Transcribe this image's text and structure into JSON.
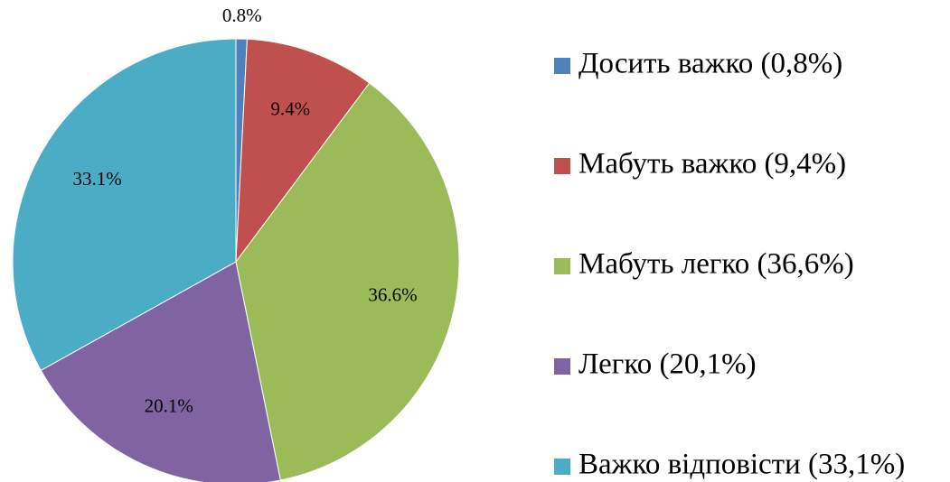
{
  "chart_data": {
    "type": "pie",
    "categories": [
      "Досить важко (0,8%)",
      "Мабуть важко (9,4%)",
      "Мабуть легко (36,6%)",
      "Легко (20,1%)",
      "Важко відповісти (33,1%)"
    ],
    "values": [
      0.8,
      9.4,
      36.6,
      20.1,
      33.1
    ],
    "value_labels": [
      "0.8%",
      "9.4%",
      "36.6%",
      "20.1%",
      "33.1%"
    ],
    "colors": [
      "#4f81bd",
      "#c0504d",
      "#9bbb59",
      "#8064a2",
      "#4bacc6"
    ],
    "legend": "right"
  }
}
